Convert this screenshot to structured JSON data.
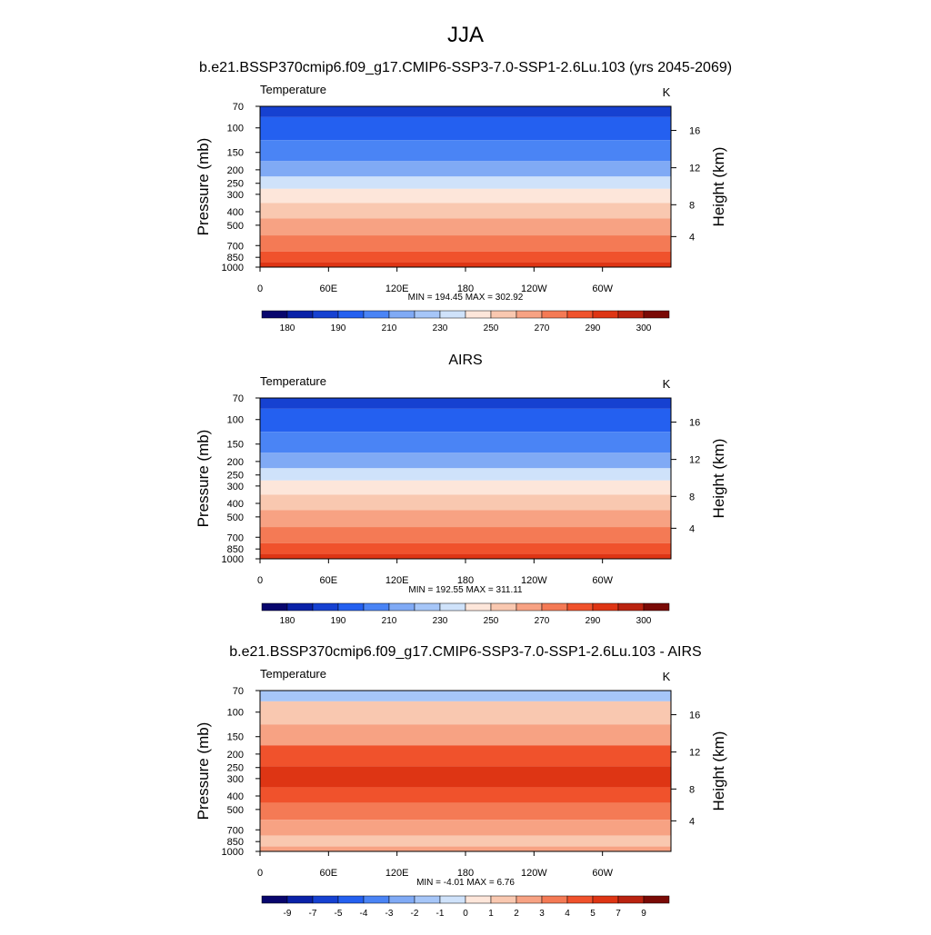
{
  "page": {
    "title": "JJA",
    "subtitle": "b.e21.BSSP370cmip6.f09_g17.CMIP6-SSP3-7.0-SSP1-2.6Lu.103 (yrs 2045-2069)"
  },
  "axes": {
    "left_label": "Pressure (mb)",
    "right_label": "Height (km)",
    "y_ticks": [
      "70",
      "100",
      "150",
      "200",
      "250",
      "300",
      "400",
      "500",
      "700",
      "850",
      "1000"
    ],
    "x_ticks": [
      "0",
      "60E",
      "120E",
      "180",
      "120W",
      "60W"
    ],
    "right_ticks": [
      "16",
      "12",
      "8",
      "4"
    ]
  },
  "colors": {
    "abs_levels": [
      "#08066d",
      "#0a22a8",
      "#1641d1",
      "#2460f0",
      "#4a84f5",
      "#80aaf5",
      "#a6c6f8",
      "#cfe2fa",
      "#fde6da",
      "#f9c8b0",
      "#f7a283",
      "#f47a55",
      "#f0522c",
      "#de3514",
      "#ba2310",
      "#7a0a06"
    ],
    "diff_levels": [
      "#08066d",
      "#0a22a8",
      "#1641d1",
      "#2460f0",
      "#4a84f5",
      "#80aaf5",
      "#a6c6f8",
      "#cfe2fa",
      "#fde6da",
      "#f9c8b0",
      "#f7a283",
      "#f47a55",
      "#f0522c",
      "#de3514",
      "#ba2310",
      "#7a0a06"
    ]
  },
  "chart_data": [
    {
      "type": "heatmap",
      "panel_title": "",
      "left_string": "Temperature",
      "right_string": "K",
      "stats": "MIN = 194.45  MAX = 302.92",
      "xlabel": "",
      "ylabel": "Pressure (mb)",
      "x_range": [
        0,
        360
      ],
      "y_range_mb": [
        1000,
        70
      ],
      "colorbar_labels": [
        "180",
        "190",
        "210",
        "230",
        "250",
        "270",
        "290",
        "300"
      ],
      "level_by_pressure": [
        [
          70,
          2
        ],
        [
          100,
          3
        ],
        [
          150,
          4
        ],
        [
          200,
          5
        ],
        [
          250,
          7
        ],
        [
          300,
          8
        ],
        [
          400,
          9
        ],
        [
          500,
          10
        ],
        [
          700,
          11
        ],
        [
          850,
          12
        ],
        [
          1000,
          13
        ]
      ],
      "grid": false,
      "legend": "bottom"
    },
    {
      "type": "heatmap",
      "panel_title": "AIRS",
      "left_string": "Temperature",
      "right_string": "K",
      "stats": "MIN = 192.55  MAX = 311.11",
      "xlabel": "",
      "ylabel": "Pressure (mb)",
      "x_range": [
        0,
        360
      ],
      "y_range_mb": [
        1000,
        70
      ],
      "colorbar_labels": [
        "180",
        "190",
        "210",
        "230",
        "250",
        "270",
        "290",
        "300"
      ],
      "level_by_pressure": [
        [
          70,
          2
        ],
        [
          100,
          3
        ],
        [
          150,
          4
        ],
        [
          200,
          5
        ],
        [
          250,
          7
        ],
        [
          300,
          8
        ],
        [
          400,
          9
        ],
        [
          500,
          10
        ],
        [
          700,
          11
        ],
        [
          850,
          12
        ],
        [
          1000,
          13
        ]
      ],
      "grid": false,
      "legend": "bottom"
    },
    {
      "type": "heatmap",
      "panel_title": "b.e21.BSSP370cmip6.f09_g17.CMIP6-SSP3-7.0-SSP1-2.6Lu.103 - AIRS",
      "left_string": "Temperature",
      "right_string": "K",
      "stats": "MIN =  -4.01  MAX =   6.76",
      "xlabel": "",
      "ylabel": "Pressure (mb)",
      "x_range": [
        0,
        360
      ],
      "y_range_mb": [
        1000,
        70
      ],
      "colorbar_labels": [
        "-9",
        "-7",
        "-5",
        "-4",
        "-3",
        "-2",
        "-1",
        "0",
        "1",
        "2",
        "3",
        "4",
        "5",
        "7",
        "9"
      ],
      "level_by_pressure": [
        [
          70,
          6
        ],
        [
          100,
          9
        ],
        [
          150,
          10
        ],
        [
          200,
          12
        ],
        [
          300,
          13
        ],
        [
          400,
          12
        ],
        [
          500,
          11
        ],
        [
          700,
          10
        ],
        [
          850,
          9
        ],
        [
          1000,
          10
        ]
      ],
      "grid": false,
      "legend": "bottom"
    }
  ]
}
